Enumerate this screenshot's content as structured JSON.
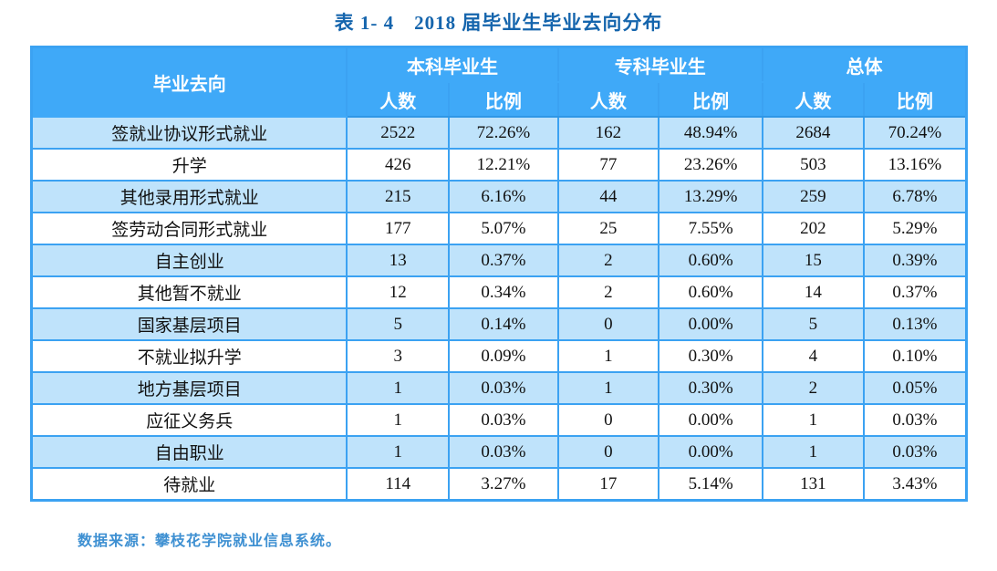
{
  "title": "表 1- 4　2018 届毕业生毕业去向分布",
  "table": {
    "col1_header": "毕业去向",
    "groups": [
      {
        "label": "本科毕业生"
      },
      {
        "label": "专科毕业生"
      },
      {
        "label": "总体"
      }
    ],
    "subheaders": {
      "count": "人数",
      "ratio": "比例"
    },
    "rows": [
      {
        "label": "签就业协议形式就业",
        "values": [
          "2522",
          "72.26%",
          "162",
          "48.94%",
          "2684",
          "70.24%"
        ]
      },
      {
        "label": "升学",
        "values": [
          "426",
          "12.21%",
          "77",
          "23.26%",
          "503",
          "13.16%"
        ]
      },
      {
        "label": "其他录用形式就业",
        "values": [
          "215",
          "6.16%",
          "44",
          "13.29%",
          "259",
          "6.78%"
        ]
      },
      {
        "label": "签劳动合同形式就业",
        "values": [
          "177",
          "5.07%",
          "25",
          "7.55%",
          "202",
          "5.29%"
        ]
      },
      {
        "label": "自主创业",
        "values": [
          "13",
          "0.37%",
          "2",
          "0.60%",
          "15",
          "0.39%"
        ]
      },
      {
        "label": "其他暂不就业",
        "values": [
          "12",
          "0.34%",
          "2",
          "0.60%",
          "14",
          "0.37%"
        ]
      },
      {
        "label": "国家基层项目",
        "values": [
          "5",
          "0.14%",
          "0",
          "0.00%",
          "5",
          "0.13%"
        ]
      },
      {
        "label": "不就业拟升学",
        "values": [
          "3",
          "0.09%",
          "1",
          "0.30%",
          "4",
          "0.10%"
        ]
      },
      {
        "label": "地方基层项目",
        "values": [
          "1",
          "0.03%",
          "1",
          "0.30%",
          "2",
          "0.05%"
        ]
      },
      {
        "label": "应征义务兵",
        "values": [
          "1",
          "0.03%",
          "0",
          "0.00%",
          "1",
          "0.03%"
        ]
      },
      {
        "label": "自由职业",
        "values": [
          "1",
          "0.03%",
          "0",
          "0.00%",
          "1",
          "0.03%"
        ]
      },
      {
        "label": "待就业",
        "values": [
          "114",
          "3.27%",
          "17",
          "5.14%",
          "131",
          "3.43%"
        ]
      }
    ]
  },
  "footer": {
    "source_note": "数据来源：攀枝花学院就业信息系统。"
  },
  "colors": {
    "header_bg": "#3fa9f8",
    "row_alt_bg": "#bfe3fb",
    "border": "#3ba2f2",
    "title_text": "#1565ad",
    "footer_text": "#3e90d2"
  }
}
